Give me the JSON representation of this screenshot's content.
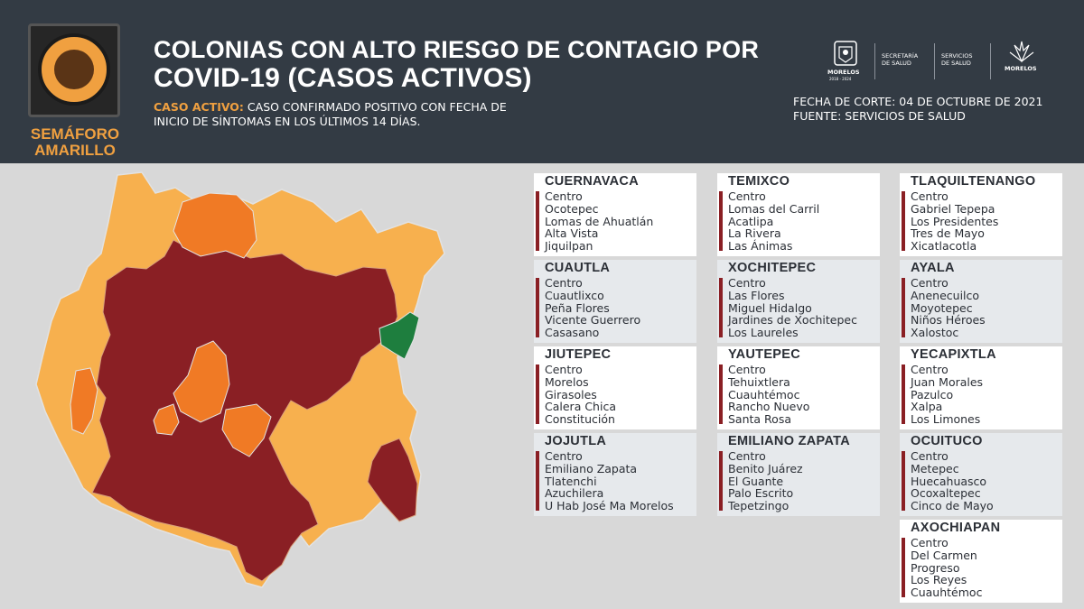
{
  "header": {
    "title_line1": "COLONIAS CON ALTO RIESGO DE CONTAGIO POR",
    "title_line2": "COVID-19 (CASOS ACTIVOS)",
    "caso_label": "CASO ACTIVO:",
    "caso_text_1": " CASO CONFIRMADO POSITIVO CON FECHA DE",
    "caso_text_2": "INICIO DE SÍNTOMAS EN LOS ÚLTIMOS 14 DÍAS.",
    "semaforo_line1": "SEMÁFORO",
    "semaforo_line2": "AMARILLO",
    "fecha": "FECHA DE CORTE: 04 DE OCTUBRE DE 2021",
    "fuente": "FUENTE: SERVICIOS DE SALUD",
    "logo1": "MORELOS",
    "logo1_sub": "2018 - 2024",
    "logo2_line1": "SECRETARÍA",
    "logo2_line2": "DE SALUD",
    "logo3_line1": "SERVICIOS",
    "logo3_line2": "DE SALUD",
    "logo4": "MORELOS"
  },
  "colors": {
    "header_bg": "#333b44",
    "accent_orange": "#f0a040",
    "risk_high": "#8a1f24",
    "risk_mid": "#f07a25",
    "risk_low": "#f7b04e",
    "risk_green": "#1e7e3e"
  },
  "municipios": [
    {
      "name": "CUERNAVACA",
      "colonias": [
        "Centro",
        "Ocotepec",
        "Lomas de Ahuatlán",
        "Alta Vista",
        "Jiquilpan"
      ]
    },
    {
      "name": "CUAUTLA",
      "colonias": [
        "Centro",
        "Cuautlixco",
        "Peña Flores",
        "Vicente Guerrero",
        "Casasano"
      ]
    },
    {
      "name": "JIUTEPEC",
      "colonias": [
        "Centro",
        "Morelos",
        "Girasoles",
        "Calera Chica",
        "Constitución"
      ]
    },
    {
      "name": "JOJUTLA",
      "colonias": [
        "Centro",
        "Emiliano Zapata",
        "Tlatenchi",
        "Azuchilera",
        "U Hab José Ma Morelos"
      ]
    },
    {
      "name": "TEMIXCO",
      "colonias": [
        "Centro",
        "Lomas del Carril",
        "Acatlipa",
        "La Rivera",
        "Las Ánimas"
      ]
    },
    {
      "name": "XOCHITEPEC",
      "colonias": [
        "Centro",
        "Las Flores",
        "Miguel Hidalgo",
        "Jardines de Xochitepec",
        "Los Laureles"
      ]
    },
    {
      "name": "YAUTEPEC",
      "colonias": [
        "Centro",
        "Tehuixtlera",
        "Cuauhtémoc",
        "Rancho Nuevo",
        "Santa Rosa"
      ]
    },
    {
      "name": "EMILIANO ZAPATA",
      "colonias": [
        "Centro",
        "Benito Juárez",
        "El Guante",
        "Palo Escrito",
        "Tepetzingo"
      ]
    },
    {
      "name": "TLAQUILTENANGO",
      "colonias": [
        "Centro",
        "Gabriel Tepepa",
        "Los Presidentes",
        "Tres de Mayo",
        "Xicatlacotla"
      ]
    },
    {
      "name": "AYALA",
      "colonias": [
        "Centro",
        "Anenecuilco",
        "Moyotepec",
        "Niños Héroes",
        "Xalostoc"
      ]
    },
    {
      "name": "YECAPIXTLA",
      "colonias": [
        "Centro",
        "Juan Morales",
        "Pazulco",
        "Xalpa",
        "Los Limones"
      ]
    },
    {
      "name": "OCUITUCO",
      "colonias": [
        "Centro",
        "Metepec",
        "Huecahuasco",
        "Ocoxaltepec",
        "Cinco de Mayo"
      ]
    },
    {
      "name": "AXOCHIAPAN",
      "colonias": [
        "Centro",
        "Del Carmen",
        "Progreso",
        "Los Reyes",
        "Cuauhtémoc"
      ]
    }
  ]
}
